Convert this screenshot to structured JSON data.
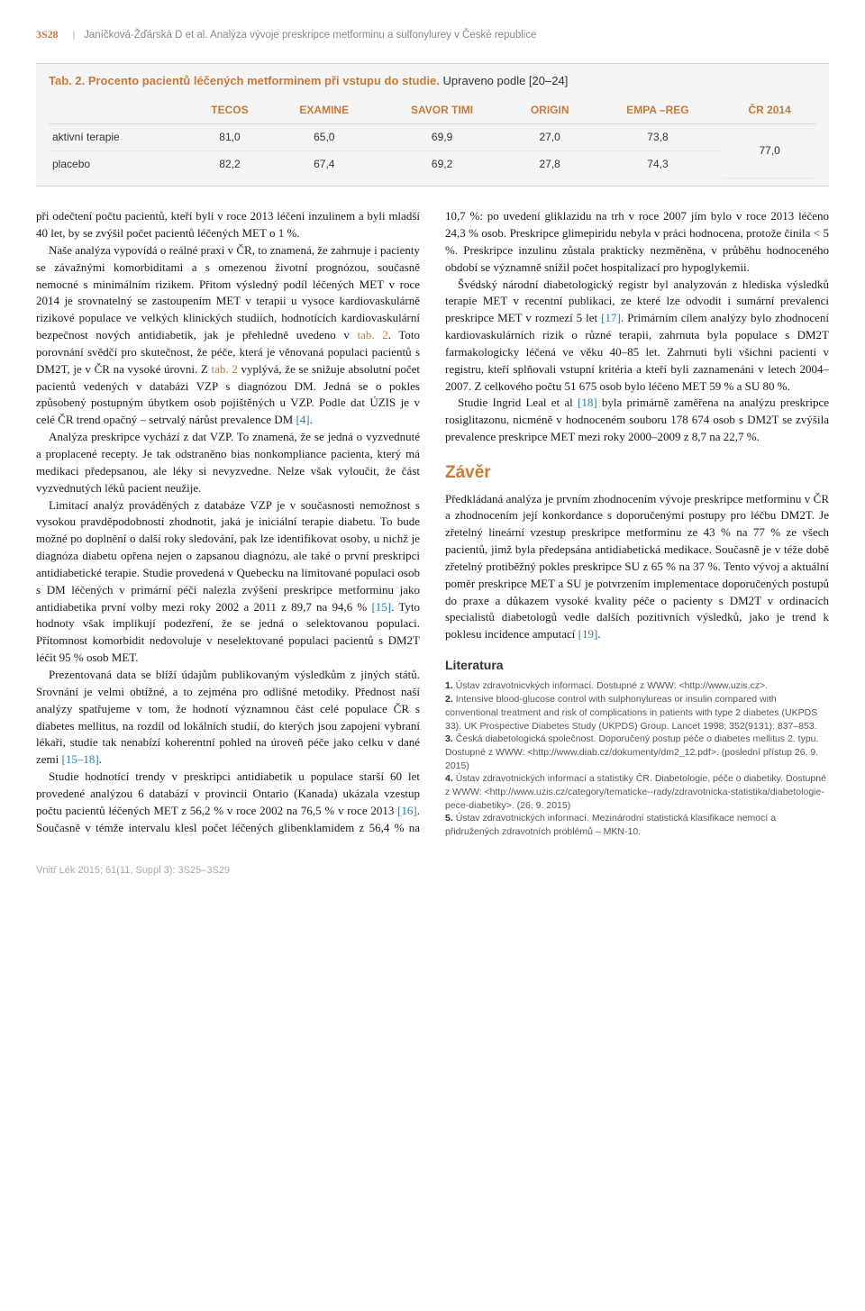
{
  "page_number": "3S28",
  "header_author_title": "Janíčková-Žďárská D et al. Analýza vývoje preskripce metforminu a sulfonylurey v České republice",
  "table": {
    "caption": "Tab. 2. Procento pacientů léčených metforminem při vstupu do studie.",
    "note": "Upraveno podle [20–24]",
    "columns": [
      "",
      "TECOS",
      "EXAMINE",
      "SAVOR TIMI",
      "ORIGIN",
      "EMPA –REG",
      "ČR 2014"
    ],
    "rows": [
      [
        "aktivní terapie",
        "81,0",
        "65,0",
        "69,9",
        "27,0",
        "73,8",
        ""
      ],
      [
        "placebo",
        "82,2",
        "67,4",
        "69,2",
        "27,8",
        "74,3",
        ""
      ]
    ],
    "merged_last": "77,0",
    "background_color": "#f5f5f5",
    "header_color": "#c77a3a",
    "border_color": "#d0d0d0"
  },
  "body": {
    "p1": "při odečtení počtu pacientů, kteří byli v roce 2013 léčeni inzulinem a byli mladší 40 let, by se zvýšil počet pacientů léčených MET o 1 %.",
    "p2a": "Naše analýza vypovídá o reálné praxi v ČR, to znamená, že zahrnuje i pacienty se závažnými komorbiditami a s omezenou životní prognózou, současně nemocné s minimálním rizikem. Přitom výsledný podíl léčených MET v roce 2014 je srovnatelný se zastoupením MET v terapii u vysoce kardiovaskulárně rizikové populace ve velkých klinických studiích, hodnotících kardiovaskulární bezpečnost nových antidiabetik, jak je přehledně uvedeno v ",
    "p2_tab": "tab. 2",
    "p2b": ". Toto porovnání svědčí pro skutečnost, že péče, která je věnovaná populaci pacientů s DM2T, je v ČR na vysoké úrovni. Z ",
    "p2_tab2": "tab. 2",
    "p2c": " vyplývá, že se snižuje absolutní počet pacientů vedených v databázi VZP s diagnózou DM. Jedná se o pokles způsobený postupným úbytkem osob pojištěných u VZP. Podle dat ÚZIS je v celé ČR trend opačný – setrvalý nárůst prevalence DM ",
    "p2_ref4": "[4]",
    "p2d": ".",
    "p3": "Analýza preskripce vychází z dat VZP. To znamená, že se jedná o vyzvednuté a proplacené recepty. Je tak odstraněno bias nonkompliance pacienta, který má medikaci předepsanou, ale léky si nevyzvedne. Nelze však vyloučit, že část vyzvednutých léků pacient neužije.",
    "p4a": "Limitací analýz prováděných z databáze VZP je v současnosti nemožnost s vysokou pravděpodobností zhodnotit, jaká je iniciální terapie diabetu. To bude možné po doplnění o další roky sledování, pak lze identifikovat osoby, u nichž je diagnóza diabetu opřena nejen o zapsanou diagnózu, ale také o první preskripci antidiabetické terapie. Studie provedená v Quebecku na limitované populaci osob s DM léčených v primární péči nalezla zvýšení preskripce metforminu jako antidiabetika první volby mezi roky 2002 a 2011 z 89,7 na 94,6 % ",
    "p4_ref15": "[15]",
    "p4b": ". Tyto hodnoty však implikují podezření, že se jedná o selektovanou populaci. Přítomnost komorbidit nedovoluje v neselektované populaci pacientů s DM2T léčit 95 % osob MET.",
    "p5a": "Prezentovaná data se blíží údajům publikovaným výsledkům z jiných států. Srovnání je velmi obtížné, a to zejména pro odlišné metodiky. Přednost naší analýzy spatřujeme v tom, že hodnotí významnou část celé populace ČR s diabetes mellitus, na rozdíl od lokálních studií, do kterých jsou zapojeni vybraní lékaři, studie tak nenabízí koherentní pohled na úroveň péče jako celku v dané zemi ",
    "p5_ref1518": "[15–18]",
    "p5b": ".",
    "p6a": "Studie hodnotící trendy v preskripci antidiabetik u populace starší 60 let provedené analýzou 6 databází v provincii Ontario (Kanada) ukázala vzestup počtu pacientů léčených MET z 56,2 % v roce 2002 na 76,5 % v roce 2013 ",
    "p6_ref16": "[16]",
    "p6b": ". Současně v témže intervalu klesl počet léčených glibenklamidem z 56,4 % na 10,7 %: po uvedení gliklazidu na trh v roce 2007 jím bylo v roce 2013 léčeno 24,3 % osob. Preskripce glimepiridu nebyla v práci hodnocena, protože činila < 5 %. Preskripce inzulinu zůstala prakticky nezměněna, v průběhu hodnoceného období se významně snížil počet hospitalizací pro hypoglykemii.",
    "p7a": "Švédský národní diabetologický registr byl analyzován z hlediska výsledků terapie MET v recentní publikaci, ze které lze odvodit i sumární prevalenci preskripce MET v rozmezí 5 let ",
    "p7_ref17": "[17]",
    "p7b": ". Primárním cílem analýzy bylo zhodnocení kardiovaskulárních rizik o různé terapii, zahrnuta byla populace s DM2T farmakologicky léčená ve věku 40–85 let. Zahrnuti byli všichni pacienti v registru, kteří splňovali vstupní kritéria a kteří byli zaznamenáni v letech 2004–2007. Z celkového počtu 51 675 osob bylo léčeno MET 59 % a SU 80 %.",
    "p8a": "Studie Ingrid Leal et al ",
    "p8_ref18": "[18]",
    "p8b": " byla primárně zaměřena na analýzu preskripce rosiglitazonu, nicméně v hodnoceném souboru 178 674 osob s DM2T se zvýšila prevalence preskripce MET mezi roky 2000–2009 z 8,7 na 22,7 %."
  },
  "zaver": {
    "title": "Závěr",
    "p1a": "Předkládaná analýza je prvním zhodnocením vývoje preskripce metforminu v ČR a zhodnocením její konkordance s doporučenými postupy pro léčbu DM2T. Je zřetelný lineární vzestup preskripce metforminu ze 43 % na 77 % ze všech pacientů, jimž byla předepsána antidiabetická medikace. Současně je v téže době zřetelný protiběžný pokles preskripce SU z 65 % na 37 %. Tento vývoj a aktuální poměr preskripce MET a SU je potvrzením implementace doporučených postupů do praxe a důkazem vysoké kvality péče o pacienty s DM2T v ordinacích specialistů diabetologů vedle dalších pozitivních výsledků, jako je trend k poklesu incidence amputací ",
    "p1_ref19": "[19]",
    "p1b": "."
  },
  "literatura": {
    "title": "Literatura",
    "items": [
      {
        "num": "1.",
        "text": "Ústav zdravotnicvkých informací. Dostupné z WWW: <http://www.uzis.cz>."
      },
      {
        "num": "2.",
        "text": "Intensive blood-glucose control with sulphonylureas or insulin compared with conventional treatment and risk of complications in patients with type 2 diabetes (UKPDS 33). UK Prospective Diabetes Study (UKPDS) Group. Lancet 1998; 352(9131): 837–853."
      },
      {
        "num": "3.",
        "text": "Česká diabetologická společnost. Doporučený postup péče o diabetes mellitus 2. typu. Dostupné z WWW: <http://www.diab.cz/dokumenty/dm2_12.pdf>. (poslední přístup 26. 9. 2015)"
      },
      {
        "num": "4.",
        "text": "Ústav zdravotnických informací a statistiky ČR. Diabetologie, péče o diabetiky. Dostupné z WWW: <http://www.uzis.cz/category/tematicke--rady/zdravotnicka-statistika/diabetologie-pece-diabetiky>. (26. 9. 2015)"
      },
      {
        "num": "5.",
        "text": "Ústav zdravotnických informací. Mezinárodní statistická klasifikace nemocí a přidružených zdravotních problémů – MKN-10."
      }
    ]
  },
  "footer_citation": "Vnitř Lék 2015; 61(11, Suppl 3): 3S25–3S29",
  "colors": {
    "accent": "#c77a3a",
    "link_blue": "#2a7aaf",
    "body_text": "#1a1a1a",
    "muted": "#888"
  }
}
